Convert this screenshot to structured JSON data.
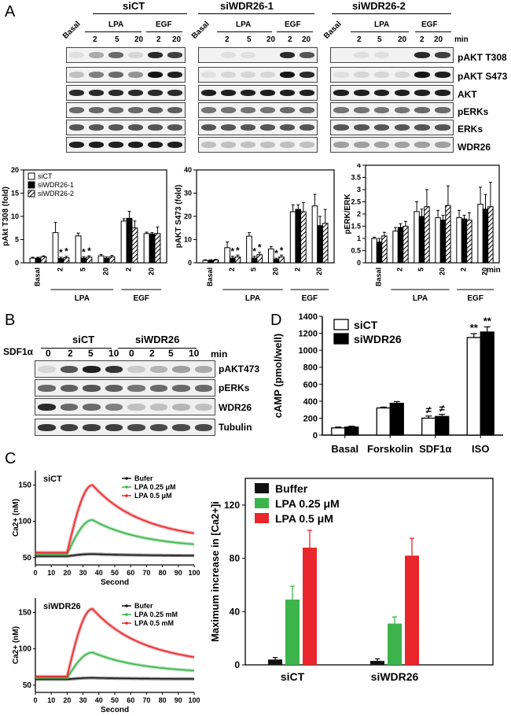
{
  "panels": {
    "A": "A",
    "B": "B",
    "C": "C",
    "D": "D"
  },
  "panel_a_blot": {
    "groups": [
      "siCT",
      "siWDR26-1",
      "siWDR26-2"
    ],
    "lane_basal": "Basal",
    "lpa": "LPA",
    "egf": "EGF",
    "times": [
      "2",
      "5",
      "20",
      "2",
      "20"
    ],
    "min": "min",
    "rows": [
      "pAKT T308",
      "pAKT S473",
      "AKT",
      "pERKs",
      "ERKs",
      "WDR26"
    ]
  },
  "chart_data": [
    {
      "id": "pakt_t308",
      "type": "bar",
      "ylabel": "pAkt T308 (fold)",
      "ylim": [
        0,
        20
      ],
      "yticks": [
        0,
        5,
        10,
        15,
        20
      ],
      "categories": [
        "Basal",
        "2",
        "5",
        "20",
        "2",
        "20"
      ],
      "group_labels": [
        "LPA",
        "EGF"
      ],
      "legend": [
        "siCT",
        "siWDR26-1",
        "siWDR26-2"
      ],
      "series": [
        {
          "name": "siCT",
          "values": [
            1.0,
            6.5,
            5.8,
            1.5,
            9.0,
            6.3
          ],
          "errors": [
            0.2,
            2.2,
            0.6,
            0.3,
            0.5,
            0.3
          ]
        },
        {
          "name": "siWDR26-1",
          "values": [
            1.0,
            0.9,
            1.0,
            1.0,
            9.6,
            6.2
          ],
          "errors": [
            0.2,
            0.3,
            0.3,
            0.3,
            1.5,
            0.3
          ]
        },
        {
          "name": "siWDR26-2",
          "values": [
            1.3,
            1.1,
            1.2,
            1.3,
            7.5,
            6.3
          ],
          "errors": [
            0.2,
            0.3,
            0.3,
            0.3,
            1.5,
            1.4
          ]
        }
      ],
      "annotations": [
        "*",
        "*",
        "*",
        "*"
      ]
    },
    {
      "id": "pakt_s473",
      "type": "bar",
      "ylabel": "pAKT S473 (fold)",
      "ylim": [
        0,
        40
      ],
      "yticks": [
        0,
        10,
        20,
        30,
        40
      ],
      "categories": [
        "Basal",
        "2",
        "5",
        "20",
        "2",
        "20"
      ],
      "group_labels": [
        "LPA",
        "EGF"
      ],
      "series": [
        {
          "name": "siCT",
          "values": [
            1.0,
            6.5,
            11.5,
            6.0,
            22.0,
            24.5
          ],
          "errors": [
            0.3,
            2.5,
            1.5,
            1.0,
            3.0,
            5.0
          ]
        },
        {
          "name": "siWDR26-1",
          "values": [
            1.0,
            2.0,
            2.0,
            1.5,
            23.0,
            16.0
          ],
          "errors": [
            0.3,
            0.8,
            0.8,
            0.5,
            2.0,
            4.0
          ]
        },
        {
          "name": "siWDR26-2",
          "values": [
            1.2,
            2.5,
            3.5,
            2.5,
            22.0,
            17.0
          ],
          "errors": [
            0.3,
            0.8,
            1.0,
            0.8,
            4.0,
            6.0
          ]
        }
      ],
      "annotations": [
        "*",
        "*",
        "*",
        "*",
        "*",
        "*"
      ]
    },
    {
      "id": "perk_erk",
      "type": "bar",
      "ylabel": "pERK/ERK",
      "ylim": [
        0,
        4
      ],
      "yticks": [
        0,
        0.5,
        1,
        1.5,
        2,
        2.5,
        3,
        3.5,
        4
      ],
      "categories": [
        "Basal",
        "2",
        "5",
        "20",
        "2",
        "20"
      ],
      "group_labels": [
        "LPA",
        "EGF"
      ],
      "min": "min",
      "series": [
        {
          "name": "siCT",
          "values": [
            1.0,
            1.3,
            2.1,
            1.85,
            1.85,
            2.4
          ],
          "errors": [
            0.05,
            0.15,
            0.4,
            0.3,
            0.3,
            0.7
          ]
        },
        {
          "name": "siWDR26-1",
          "values": [
            0.85,
            1.45,
            1.9,
            1.75,
            1.8,
            2.2
          ],
          "errors": [
            0.15,
            0.15,
            0.3,
            0.2,
            0.15,
            0.6
          ]
        },
        {
          "name": "siWDR26-2",
          "values": [
            1.1,
            1.5,
            2.3,
            2.35,
            1.75,
            2.3
          ],
          "errors": [
            0.15,
            0.2,
            0.7,
            0.8,
            0.3,
            1.0
          ]
        }
      ]
    },
    {
      "id": "camp",
      "type": "bar",
      "ylabel": "cAMP (pmol/well)",
      "ylim": [
        0,
        1400
      ],
      "yticks": [
        0,
        200,
        400,
        600,
        800,
        1000,
        1200,
        1400
      ],
      "categories": [
        "Basal",
        "Forskolin",
        "SDF1α",
        "ISO"
      ],
      "legend": [
        "siCT",
        "siWDR26"
      ],
      "series": [
        {
          "name": "siCT",
          "values": [
            85,
            320,
            200,
            1150
          ],
          "errors": [
            10,
            10,
            25,
            45
          ]
        },
        {
          "name": "siWDR26",
          "values": [
            95,
            375,
            220,
            1215
          ],
          "errors": [
            10,
            20,
            25,
            60
          ]
        }
      ],
      "annotations": [
        "≠",
        "≠",
        "**",
        "**"
      ]
    },
    {
      "id": "ca_sict",
      "type": "line",
      "title": "siCT",
      "xlabel": "Second",
      "ylabel": "Ca2+ (nM)",
      "xlim": [
        0,
        100
      ],
      "ylim": [
        40,
        170
      ],
      "xticks": [
        0,
        10,
        20,
        30,
        40,
        50,
        60,
        70,
        80,
        90,
        100
      ],
      "yticks": [
        50,
        100,
        150
      ],
      "series": [
        {
          "name": "Bufer",
          "peak": 55,
          "base": 52
        },
        {
          "name": "LPA 0.25 μM",
          "peak": 102,
          "base": 55
        },
        {
          "name": "LPA 0.5 μM",
          "peak": 150,
          "base": 57
        }
      ]
    },
    {
      "id": "ca_siwdr26",
      "type": "line",
      "title": "siWDR26",
      "xlabel": "Second",
      "ylabel": "Ca2+ (nM)",
      "xlim": [
        0,
        100
      ],
      "ylim": [
        40,
        170
      ],
      "xticks": [
        0,
        10,
        20,
        30,
        40,
        50,
        60,
        70,
        80,
        90,
        100
      ],
      "yticks": [
        50,
        100,
        150
      ],
      "series": [
        {
          "name": "Bufer",
          "peak": 60,
          "base": 58
        },
        {
          "name": "LPA 0.25 mM",
          "peak": 95,
          "base": 60
        },
        {
          "name": "LPA 0.5 mM",
          "peak": 155,
          "base": 62
        }
      ]
    },
    {
      "id": "ca_max",
      "type": "bar",
      "ylabel": "Maximum increase in [Ca2+]i",
      "ylim": [
        0,
        140
      ],
      "yticks": [
        0,
        40,
        80,
        120
      ],
      "categories": [
        "siCT",
        "siWDR26"
      ],
      "legend": [
        "Buffer",
        "LPA 0.25 μM",
        "LPA 0.5 μM"
      ],
      "series": [
        {
          "name": "Buffer",
          "values": [
            4,
            3
          ],
          "errors": [
            1.5,
            1.5
          ]
        },
        {
          "name": "LPA 0.25 μM",
          "values": [
            49,
            31
          ],
          "errors": [
            10,
            5
          ]
        },
        {
          "name": "LPA 0.5 μM",
          "values": [
            88,
            82
          ],
          "errors": [
            13,
            13
          ]
        }
      ]
    }
  ],
  "panel_b_blot": {
    "agonist": "SDF1α",
    "groups": [
      "siCT",
      "siWDR26"
    ],
    "times": [
      "0",
      "2",
      "5",
      "10",
      "0",
      "2",
      "5",
      "10"
    ],
    "min": "min",
    "rows": [
      "pAKT473",
      "pERKs",
      "WDR26",
      "Tubulin"
    ]
  },
  "colors": {
    "buffer": "#111111",
    "lpa025": "#3cb44b",
    "lpa05": "#e8262b"
  }
}
